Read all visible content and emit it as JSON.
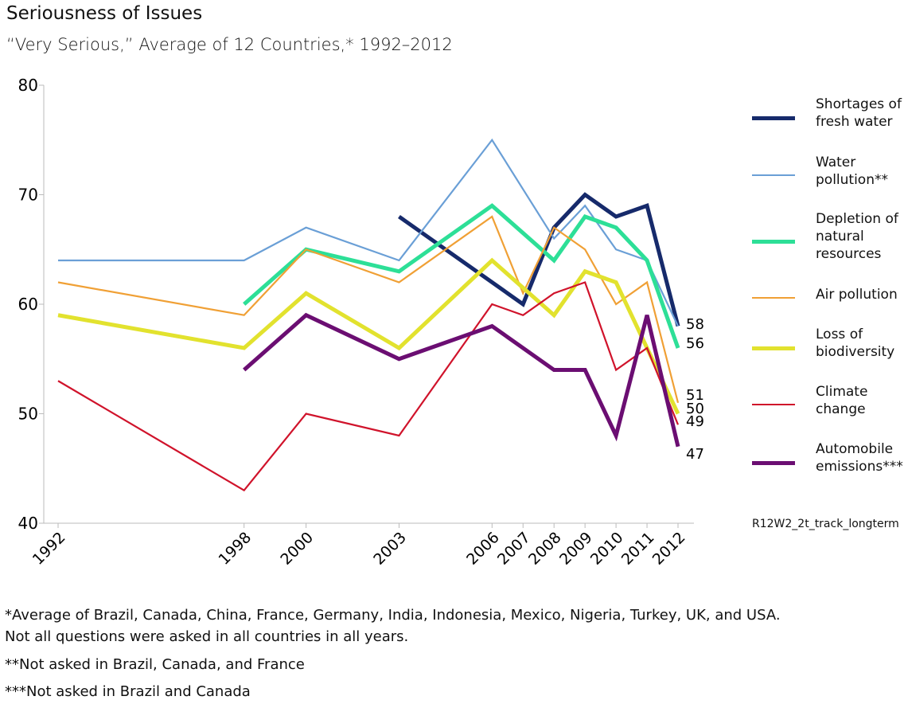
{
  "chart_data": {
    "type": "line",
    "title": "Seriousness of Issues",
    "subtitle": "“Very Serious,” Average of 12 Countries,* 1992–2012",
    "x": [
      1992,
      1998,
      2000,
      2003,
      2006,
      2007,
      2008,
      2009,
      2010,
      2011,
      2012
    ],
    "x_tick_labels": [
      "1992",
      "1998",
      "2000",
      "2003",
      "2006",
      "2007",
      "2008",
      "2009",
      "2010",
      "2011",
      "2012"
    ],
    "ylim": [
      40,
      80
    ],
    "y_ticks": [
      40,
      50,
      60,
      70,
      80
    ],
    "y_tick_labels": [
      "40",
      "50",
      "60",
      "70",
      "80"
    ],
    "grid": false,
    "legend_placement": "right",
    "series": [
      {
        "name": "Shortages of fresh water",
        "color": "#162a6b",
        "thick": true,
        "points": [
          [
            2003,
            68
          ],
          [
            2007,
            60
          ],
          [
            2008,
            67
          ],
          [
            2009,
            70
          ],
          [
            2010,
            68
          ],
          [
            2011,
            69
          ],
          [
            2012,
            58
          ]
        ],
        "end_label": "58"
      },
      {
        "name": "Water pollution**",
        "color": "#6a9fd6",
        "thick": false,
        "points": [
          [
            1992,
            64
          ],
          [
            1998,
            64
          ],
          [
            2000,
            67
          ],
          [
            2003,
            64
          ],
          [
            2006,
            75
          ],
          [
            2008,
            66
          ],
          [
            2009,
            69
          ],
          [
            2010,
            65
          ],
          [
            2011,
            64
          ],
          [
            2012,
            58
          ]
        ],
        "end_label": ""
      },
      {
        "name": "Depletion of natural resources",
        "color": "#2ddf97",
        "thick": true,
        "points": [
          [
            1998,
            60
          ],
          [
            2000,
            65
          ],
          [
            2003,
            63
          ],
          [
            2006,
            69
          ],
          [
            2008,
            64
          ],
          [
            2009,
            68
          ],
          [
            2010,
            67
          ],
          [
            2011,
            64
          ],
          [
            2012,
            56
          ]
        ],
        "end_label": "56"
      },
      {
        "name": "Air pollution",
        "color": "#f0a035",
        "thick": false,
        "points": [
          [
            1992,
            62
          ],
          [
            1998,
            59
          ],
          [
            2000,
            65
          ],
          [
            2003,
            62
          ],
          [
            2006,
            68
          ],
          [
            2007,
            61
          ],
          [
            2008,
            67
          ],
          [
            2009,
            65
          ],
          [
            2010,
            60
          ],
          [
            2011,
            62
          ],
          [
            2012,
            51
          ]
        ],
        "end_label": "51"
      },
      {
        "name": "Loss of biodiversity",
        "color": "#e2e22e",
        "thick": true,
        "points": [
          [
            1992,
            59
          ],
          [
            1998,
            56
          ],
          [
            2000,
            61
          ],
          [
            2003,
            56
          ],
          [
            2006,
            64
          ],
          [
            2008,
            59
          ],
          [
            2009,
            63
          ],
          [
            2010,
            62
          ],
          [
            2011,
            56
          ],
          [
            2012,
            50
          ]
        ],
        "end_label": "50"
      },
      {
        "name": "Climate change",
        "color": "#d0132b",
        "thick": false,
        "points": [
          [
            1992,
            53
          ],
          [
            1998,
            43
          ],
          [
            2000,
            50
          ],
          [
            2003,
            48
          ],
          [
            2006,
            60
          ],
          [
            2007,
            59
          ],
          [
            2008,
            61
          ],
          [
            2009,
            62
          ],
          [
            2010,
            54
          ],
          [
            2011,
            56
          ],
          [
            2012,
            49
          ]
        ],
        "end_label": "49"
      },
      {
        "name": "Automobile emissions***",
        "color": "#6b0e72",
        "thick": true,
        "points": [
          [
            1998,
            54
          ],
          [
            2000,
            59
          ],
          [
            2003,
            55
          ],
          [
            2006,
            58
          ],
          [
            2008,
            54
          ],
          [
            2009,
            54
          ],
          [
            2010,
            48
          ],
          [
            2011,
            59
          ],
          [
            2012,
            47
          ]
        ],
        "end_label": "47"
      }
    ],
    "legend_labels": [
      "Shortages of fresh water",
      "Water pollution**",
      "Depletion of natural resources",
      "Air pollution",
      "Loss of biodiversity",
      "Climate change",
      "Automobile emissions***"
    ],
    "source_code": "R12W2_2t_track_longterm"
  },
  "footnotes": [
    "*Average of Brazil, Canada, China, France, Germany, India, Indonesia, Mexico, Nigeria, Turkey, UK, and USA.",
    "Not all questions were asked in all countries in all years.",
    "**Not asked in Brazil, Canada, and France",
    "***Not asked in Brazil and Canada"
  ]
}
